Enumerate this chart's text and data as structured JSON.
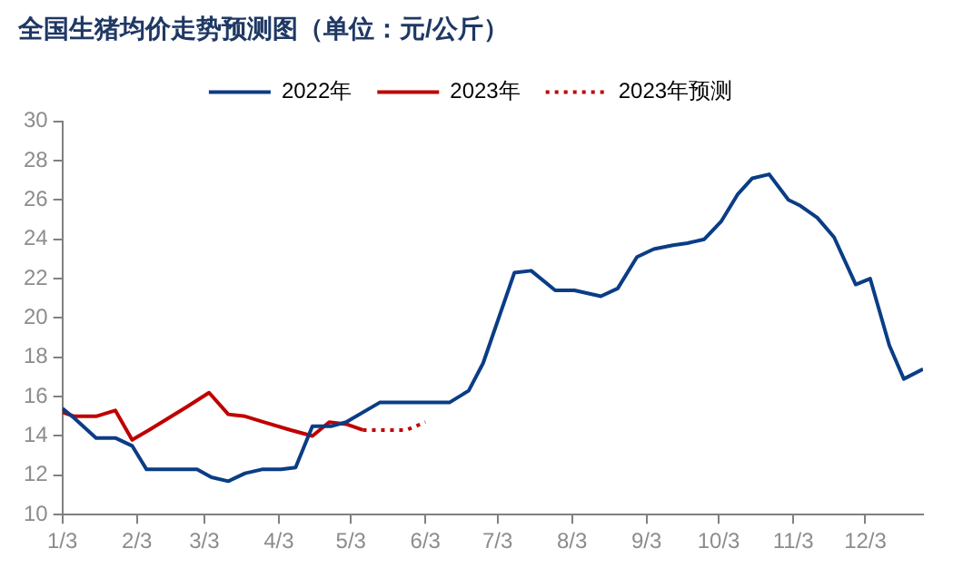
{
  "chart_data": {
    "type": "line",
    "title": "全国生猪均价走势预测图（单位：元/公斤）",
    "xlim": [
      "--01-03",
      "--12-27"
    ],
    "xticks": [
      {
        "value": "--01-03",
        "label": "1/3"
      },
      {
        "value": "--02-03",
        "label": "2/3"
      },
      {
        "value": "--03-03",
        "label": "3/3"
      },
      {
        "value": "--04-03",
        "label": "4/3"
      },
      {
        "value": "--05-03",
        "label": "5/3"
      },
      {
        "value": "--06-03",
        "label": "6/3"
      },
      {
        "value": "--07-03",
        "label": "7/3"
      },
      {
        "value": "--08-03",
        "label": "8/3"
      },
      {
        "value": "--09-03",
        "label": "9/3"
      },
      {
        "value": "--10-03",
        "label": "10/3"
      },
      {
        "value": "--11-03",
        "label": "11/3"
      },
      {
        "value": "--12-03",
        "label": "12/3"
      }
    ],
    "ylim": [
      10,
      30
    ],
    "yticks": [
      10,
      12,
      14,
      16,
      18,
      20,
      22,
      24,
      26,
      28,
      30
    ],
    "grid": false,
    "legend": "top",
    "marker": "none",
    "series": [
      {
        "name": "2022年",
        "color": "#0b3d86",
        "line_style": "solid",
        "x": [
          "--01-03",
          "--01-08",
          "--01-17",
          "--01-25",
          "--02-01",
          "--02-07",
          "--02-14",
          "--02-21",
          "--02-28",
          "--03-06",
          "--03-13",
          "--03-20",
          "--03-27",
          "--04-04",
          "--04-10",
          "--04-17",
          "--04-25",
          "--05-01",
          "--05-15",
          "--05-30",
          "--06-13",
          "--06-21",
          "--06-27",
          "--07-10",
          "--07-17",
          "--07-27",
          "--08-04",
          "--08-15",
          "--08-22",
          "--08-30",
          "--09-06",
          "--09-14",
          "--09-20",
          "--09-27",
          "--10-04",
          "--10-11",
          "--10-17",
          "--10-24",
          "--11-01",
          "--11-06",
          "--11-13",
          "--11-20",
          "--11-29",
          "--12-05",
          "--12-13",
          "--12-19",
          "--12-27"
        ],
        "values": [
          15.4,
          14.9,
          13.9,
          13.9,
          13.5,
          12.3,
          12.3,
          12.3,
          12.3,
          11.9,
          11.7,
          12.1,
          12.3,
          12.3,
          12.4,
          14.5,
          14.5,
          14.7,
          15.7,
          15.7,
          15.7,
          16.3,
          17.7,
          22.3,
          22.4,
          21.4,
          21.4,
          21.1,
          21.5,
          23.1,
          23.5,
          23.7,
          23.8,
          24.0,
          24.9,
          26.3,
          27.1,
          27.3,
          26.0,
          25.7,
          25.1,
          24.1,
          21.7,
          22.0,
          18.6,
          16.9,
          17.4
        ]
      },
      {
        "name": "2023年",
        "color": "#c00000",
        "line_style": "solid",
        "x": [
          "--01-03",
          "--01-08",
          "--01-17",
          "--01-25",
          "--02-01",
          "--02-08",
          "--02-16",
          "--02-24",
          "--03-05",
          "--03-13",
          "--03-20",
          "--03-28",
          "--04-08",
          "--04-17",
          "--04-24",
          "--05-01",
          "--05-08"
        ],
        "values": [
          15.2,
          15.0,
          15.0,
          15.3,
          13.8,
          14.3,
          14.9,
          15.5,
          16.2,
          15.1,
          15.0,
          14.7,
          14.3,
          14.0,
          14.7,
          14.6,
          14.3
        ]
      },
      {
        "name": "2023年预测",
        "color": "#c00000",
        "line_style": "dotted",
        "x": [
          "--05-08",
          "--05-20",
          "--05-26",
          "--06-03"
        ],
        "values": [
          14.3,
          14.3,
          14.3,
          14.7
        ]
      }
    ]
  }
}
